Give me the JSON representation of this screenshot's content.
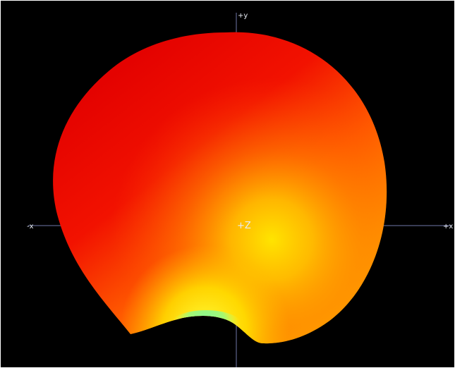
{
  "viewport": {
    "background_color": "#000000",
    "frame_color": "#ffffff"
  },
  "axes": {
    "color": "#6f78a8",
    "labels": {
      "pos_y": "+y",
      "neg_x": "-x",
      "pos_x": "+x",
      "pos_z": "+Z"
    }
  },
  "pattern": {
    "colormap": [
      "#e00000",
      "#ff3a00",
      "#ff8a00",
      "#ffd000",
      "#ffff2a",
      "#5cf59a"
    ]
  }
}
